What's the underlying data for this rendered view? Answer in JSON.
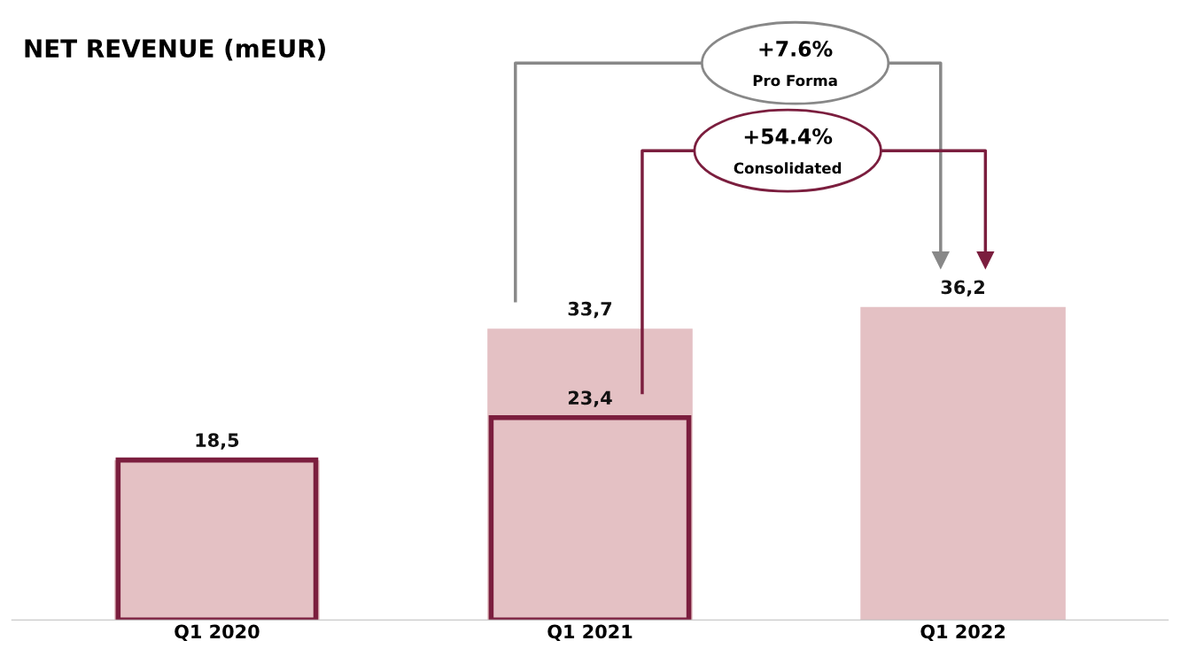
{
  "chart_data": {
    "type": "bar",
    "title": "NET REVENUE (mEUR)",
    "categories": [
      "Q1 2020",
      "Q1 2021",
      "Q1 2022"
    ],
    "series": [
      {
        "color": "#e4c1c4",
        "values": [
          18.5,
          33.7,
          36.2
        ],
        "value_labels": [
          null,
          "33,7",
          "36,2"
        ]
      },
      {
        "color": "#7b1e3e",
        "values": [
          18.5,
          23.4,
          null
        ],
        "value_labels": [
          "18,5",
          "23,4",
          null
        ]
      }
    ],
    "annotations": [
      "+7.6%\nPro Forma",
      "+54.4%\nConsolidated"
    ],
    "grid": false,
    "legend": false
  }
}
